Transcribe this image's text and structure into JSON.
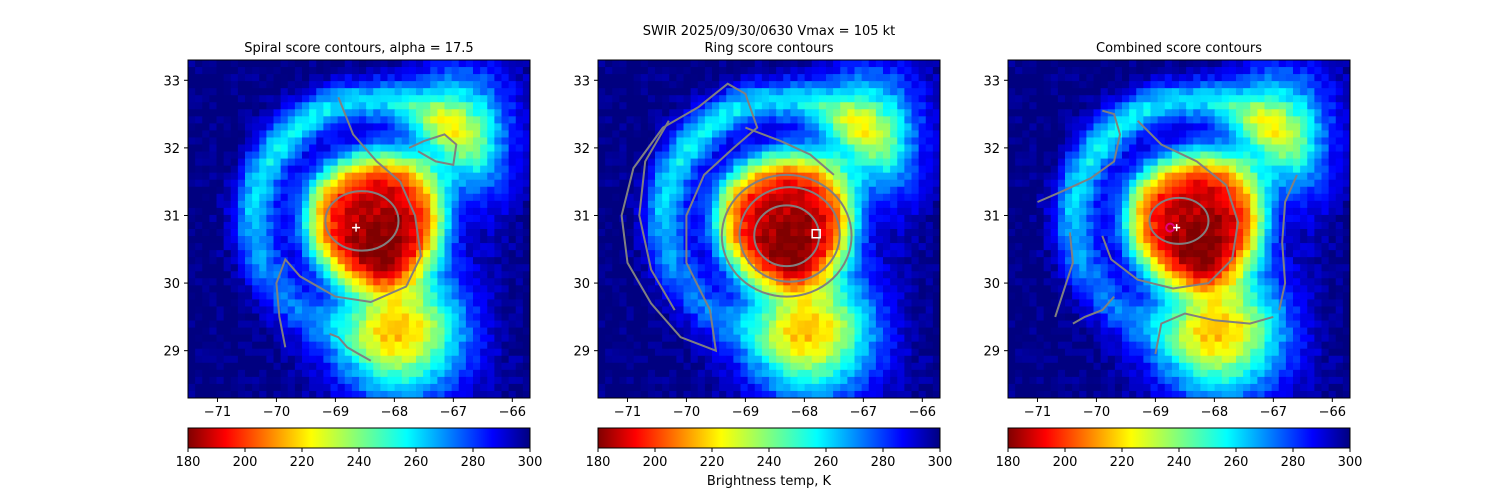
{
  "figure": {
    "suptitle_line1": "SWIR  2025/09/30/0630    Vmax = 105 kt",
    "colorbar_label": "Brightness temp, K"
  },
  "colors": {
    "contour": "#808080",
    "marker_white": "#ffffff",
    "marker_magenta": "#e6007e"
  },
  "chart_data": [
    {
      "type": "heatmap",
      "title": "Spiral score contours, alpha = 17.5",
      "xlim": [
        -71.5,
        -65.7
      ],
      "ylim": [
        28.3,
        33.3
      ],
      "xticks": [
        "−71",
        "−70",
        "−69",
        "−68",
        "−67",
        "−66"
      ],
      "xtick_values": [
        -71,
        -70,
        -69,
        -68,
        -67,
        -66
      ],
      "yticks": [
        "29",
        "30",
        "31",
        "32",
        "33"
      ],
      "ytick_values": [
        29,
        30,
        31,
        32,
        33
      ],
      "colorbar": {
        "range": [
          180,
          300
        ],
        "ticks": [
          "180",
          "200",
          "220",
          "240",
          "260",
          "280",
          "300"
        ],
        "colormap": "jet_r"
      },
      "center_marker": {
        "shape": "plus",
        "lon": -68.65,
        "lat": 30.82
      },
      "contour_mode": "spiral"
    },
    {
      "type": "heatmap",
      "title": "Ring score contours",
      "xlim": [
        -71.5,
        -65.7
      ],
      "ylim": [
        28.3,
        33.3
      ],
      "xticks": [
        "−71",
        "−70",
        "−69",
        "−68",
        "−67",
        "−66"
      ],
      "xtick_values": [
        -71,
        -70,
        -69,
        -68,
        -67,
        -66
      ],
      "yticks": [
        "29",
        "30",
        "31",
        "32",
        "33"
      ],
      "ytick_values": [
        29,
        30,
        31,
        32,
        33
      ],
      "colorbar": {
        "range": [
          180,
          300
        ],
        "ticks": [
          "180",
          "200",
          "220",
          "240",
          "260",
          "280",
          "300"
        ],
        "colormap": "jet_r"
      },
      "center_marker": {
        "shape": "square",
        "lon": -67.8,
        "lat": 30.73
      },
      "contour_mode": "ring"
    },
    {
      "type": "heatmap",
      "title": "Combined score contours",
      "xlim": [
        -71.5,
        -65.7
      ],
      "ylim": [
        28.3,
        33.3
      ],
      "xticks": [
        "−71",
        "−70",
        "−69",
        "−68",
        "−67",
        "−66"
      ],
      "xtick_values": [
        -71,
        -70,
        -69,
        -68,
        -67,
        -66
      ],
      "yticks": [
        "29",
        "30",
        "31",
        "32",
        "33"
      ],
      "ytick_values": [
        29,
        30,
        31,
        32,
        33
      ],
      "colorbar": {
        "range": [
          180,
          300
        ],
        "ticks": [
          "180",
          "200",
          "220",
          "240",
          "260",
          "280",
          "300"
        ],
        "colormap": "jet_r"
      },
      "center_marker": {
        "shape": "circle-plus",
        "lon": -68.75,
        "lat": 30.82
      },
      "contour_mode": "combined"
    }
  ]
}
